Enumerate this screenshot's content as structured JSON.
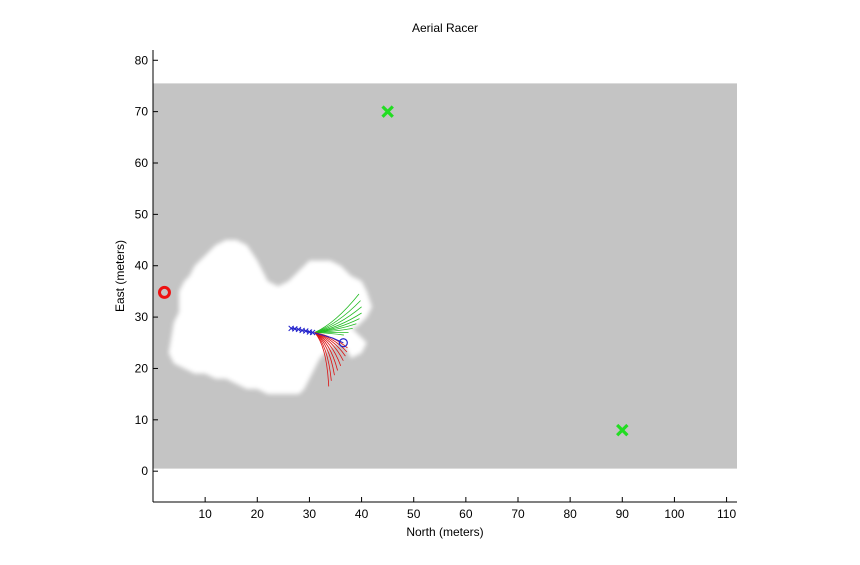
{
  "chart_data": {
    "type": "scatter",
    "title": "Aerial Racer",
    "xlabel": "North (meters)",
    "ylabel": "East (meters)",
    "xlim": [
      0,
      112
    ],
    "ylim": [
      -6,
      82
    ],
    "xticks": [
      10,
      20,
      30,
      40,
      50,
      60,
      70,
      80,
      90,
      100,
      110
    ],
    "yticks": [
      0,
      10,
      20,
      30,
      40,
      50,
      60,
      70,
      80
    ],
    "grid": false,
    "map_extent": {
      "x": [
        0,
        112
      ],
      "y": [
        0.5,
        75.5
      ]
    },
    "explored_region": [
      [
        3,
        23
      ],
      [
        4,
        29
      ],
      [
        5,
        31
      ],
      [
        5,
        35
      ],
      [
        6,
        37
      ],
      [
        7,
        38
      ],
      [
        8,
        40
      ],
      [
        9,
        41
      ],
      [
        10,
        42
      ],
      [
        12,
        44
      ],
      [
        14,
        45
      ],
      [
        16,
        45
      ],
      [
        18,
        44
      ],
      [
        20,
        41
      ],
      [
        21,
        39
      ],
      [
        22,
        37
      ],
      [
        24,
        36
      ],
      [
        26,
        37
      ],
      [
        28,
        39
      ],
      [
        30,
        41
      ],
      [
        32,
        41
      ],
      [
        34,
        41
      ],
      [
        36,
        40
      ],
      [
        38,
        38
      ],
      [
        40,
        37
      ],
      [
        41,
        35
      ],
      [
        42,
        32
      ],
      [
        41,
        30
      ],
      [
        40,
        29
      ],
      [
        39,
        28
      ],
      [
        38,
        28
      ],
      [
        41,
        25
      ],
      [
        40,
        23
      ],
      [
        38,
        22
      ],
      [
        37,
        24
      ],
      [
        36,
        25
      ],
      [
        34,
        24
      ],
      [
        32,
        22
      ],
      [
        31,
        20
      ],
      [
        30,
        18
      ],
      [
        29,
        16
      ],
      [
        28,
        15
      ],
      [
        26,
        15
      ],
      [
        24,
        15
      ],
      [
        22,
        15
      ],
      [
        20,
        16
      ],
      [
        18,
        16
      ],
      [
        16,
        17
      ],
      [
        14,
        18
      ],
      [
        12,
        18
      ],
      [
        10,
        19
      ],
      [
        8,
        19
      ],
      [
        6,
        20
      ],
      [
        4,
        21
      ]
    ],
    "waypoints": [
      [
        45,
        70
      ],
      [
        90,
        8
      ]
    ],
    "start_marker": [
      2.2,
      34.8
    ],
    "vehicle": [
      36.5,
      25
    ],
    "vehicle_trail": [
      [
        26.5,
        27.8
      ],
      [
        27.2,
        27.7
      ],
      [
        27.9,
        27.6
      ],
      [
        28.6,
        27.4
      ],
      [
        29.3,
        27.3
      ],
      [
        30,
        27.1
      ],
      [
        30.6,
        27.0
      ]
    ],
    "path_to_vehicle": [
      [
        30.6,
        27.0
      ],
      [
        32.5,
        26.5
      ],
      [
        34.5,
        25.9
      ],
      [
        36.5,
        25
      ]
    ],
    "branch_origin": [
      31,
      27
    ],
    "branches_green": [
      [
        39.5,
        34.5
      ],
      [
        39.8,
        33.2
      ],
      [
        40.0,
        32.0
      ],
      [
        40.0,
        30.8
      ],
      [
        39.6,
        29.7
      ],
      [
        39.0,
        28.7
      ],
      [
        38.3,
        27.8
      ],
      [
        37.5,
        27.0
      ],
      [
        36.6,
        26.5
      ]
    ],
    "branches_red": [
      [
        33.7,
        16.5
      ],
      [
        34.2,
        17.6
      ],
      [
        34.8,
        18.7
      ],
      [
        35.4,
        19.6
      ],
      [
        36.0,
        20.5
      ],
      [
        36.5,
        21.5
      ],
      [
        36.9,
        22.4
      ],
      [
        37.2,
        23.2
      ],
      [
        37.3,
        24.0
      ]
    ],
    "colors": {
      "unexplored": "#c4c4c4",
      "explored": "#ffffff",
      "waypoint": "#22dd22",
      "start": "#ee1111",
      "vehicle": "#2222cc",
      "branch_green": "#22bb22",
      "branch_red": "#dd1111"
    }
  }
}
